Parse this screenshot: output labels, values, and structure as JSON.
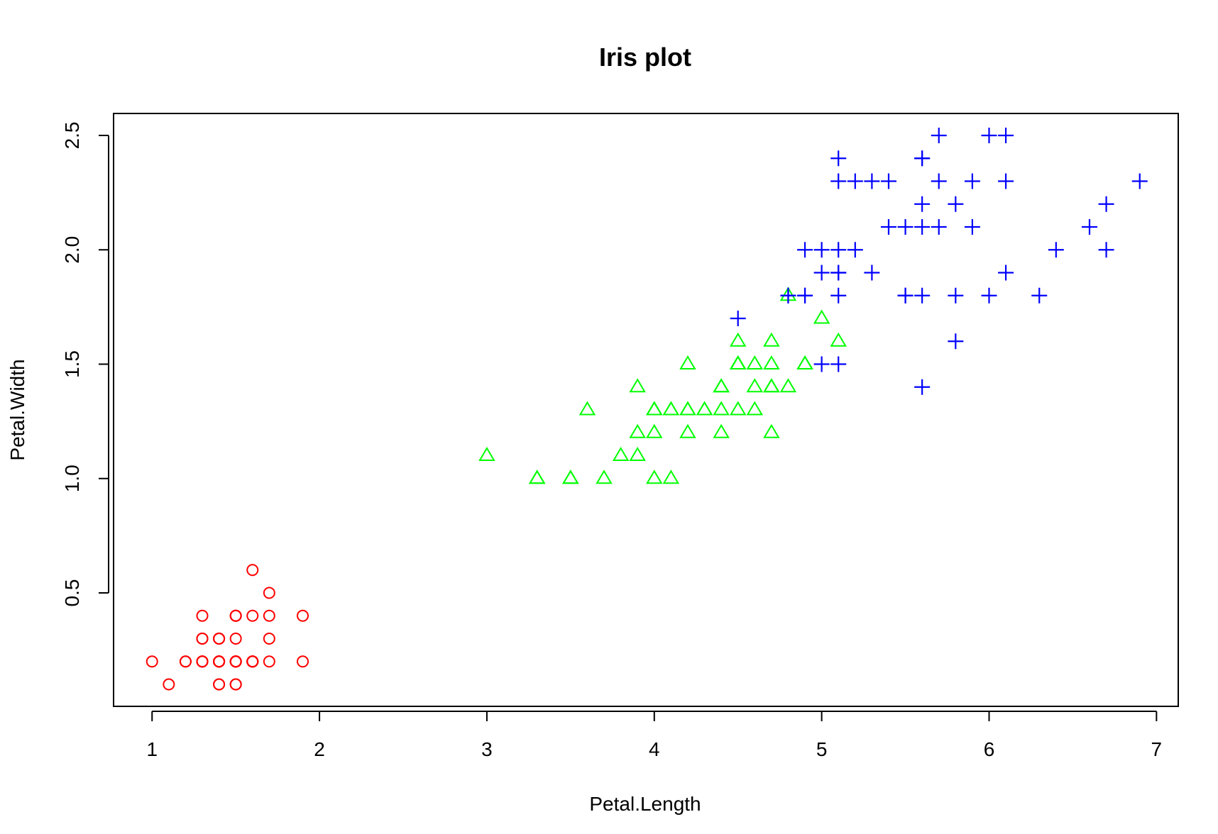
{
  "chart_data": {
    "type": "scatter",
    "title": "Iris plot",
    "xlabel": "Petal.Length",
    "ylabel": "Petal.Width",
    "xlim": [
      0.77,
      7.13
    ],
    "ylim": [
      0.004,
      2.596
    ],
    "x_ticks": [
      1,
      2,
      3,
      4,
      5,
      6,
      7
    ],
    "y_ticks": [
      0.5,
      1.0,
      1.5,
      2.0,
      2.5
    ],
    "x_tick_labels": [
      "1",
      "2",
      "3",
      "4",
      "5",
      "6",
      "7"
    ],
    "y_tick_labels": [
      "0.5",
      "1.0",
      "1.5",
      "2.0",
      "2.5"
    ],
    "grid": false,
    "legend": "none",
    "series": [
      {
        "marker": "circle",
        "color": "#ff0000",
        "points": [
          [
            1.4,
            0.2
          ],
          [
            1.4,
            0.2
          ],
          [
            1.3,
            0.2
          ],
          [
            1.5,
            0.2
          ],
          [
            1.4,
            0.2
          ],
          [
            1.7,
            0.4
          ],
          [
            1.4,
            0.3
          ],
          [
            1.5,
            0.2
          ],
          [
            1.4,
            0.2
          ],
          [
            1.5,
            0.1
          ],
          [
            1.5,
            0.2
          ],
          [
            1.6,
            0.2
          ],
          [
            1.4,
            0.1
          ],
          [
            1.1,
            0.1
          ],
          [
            1.2,
            0.2
          ],
          [
            1.5,
            0.4
          ],
          [
            1.3,
            0.4
          ],
          [
            1.4,
            0.3
          ],
          [
            1.7,
            0.3
          ],
          [
            1.5,
            0.3
          ],
          [
            1.7,
            0.2
          ],
          [
            1.5,
            0.4
          ],
          [
            1.0,
            0.2
          ],
          [
            1.7,
            0.5
          ],
          [
            1.9,
            0.2
          ],
          [
            1.6,
            0.2
          ],
          [
            1.6,
            0.4
          ],
          [
            1.5,
            0.2
          ],
          [
            1.4,
            0.2
          ],
          [
            1.6,
            0.2
          ],
          [
            1.6,
            0.2
          ],
          [
            1.5,
            0.4
          ],
          [
            1.5,
            0.1
          ],
          [
            1.4,
            0.2
          ],
          [
            1.5,
            0.2
          ],
          [
            1.2,
            0.2
          ],
          [
            1.3,
            0.2
          ],
          [
            1.4,
            0.1
          ],
          [
            1.3,
            0.2
          ],
          [
            1.5,
            0.2
          ],
          [
            1.3,
            0.3
          ],
          [
            1.3,
            0.3
          ],
          [
            1.3,
            0.2
          ],
          [
            1.6,
            0.6
          ],
          [
            1.9,
            0.4
          ],
          [
            1.4,
            0.3
          ],
          [
            1.6,
            0.2
          ],
          [
            1.4,
            0.2
          ],
          [
            1.5,
            0.2
          ],
          [
            1.4,
            0.2
          ]
        ]
      },
      {
        "marker": "triangle",
        "color": "#00ff00",
        "points": [
          [
            4.7,
            1.4
          ],
          [
            4.5,
            1.5
          ],
          [
            4.9,
            1.5
          ],
          [
            4.0,
            1.3
          ],
          [
            4.6,
            1.5
          ],
          [
            4.5,
            1.3
          ],
          [
            4.7,
            1.6
          ],
          [
            3.3,
            1.0
          ],
          [
            4.6,
            1.3
          ],
          [
            3.9,
            1.4
          ],
          [
            3.5,
            1.0
          ],
          [
            4.2,
            1.5
          ],
          [
            4.0,
            1.0
          ],
          [
            4.7,
            1.4
          ],
          [
            3.6,
            1.3
          ],
          [
            4.4,
            1.4
          ],
          [
            4.5,
            1.5
          ],
          [
            4.1,
            1.0
          ],
          [
            4.5,
            1.5
          ],
          [
            3.9,
            1.1
          ],
          [
            4.8,
            1.8
          ],
          [
            4.0,
            1.3
          ],
          [
            4.9,
            1.5
          ],
          [
            4.7,
            1.2
          ],
          [
            4.3,
            1.3
          ],
          [
            4.4,
            1.4
          ],
          [
            4.8,
            1.4
          ],
          [
            5.0,
            1.7
          ],
          [
            4.5,
            1.5
          ],
          [
            3.5,
            1.0
          ],
          [
            3.8,
            1.1
          ],
          [
            3.7,
            1.0
          ],
          [
            3.9,
            1.2
          ],
          [
            5.1,
            1.6
          ],
          [
            4.5,
            1.5
          ],
          [
            4.5,
            1.6
          ],
          [
            4.7,
            1.5
          ],
          [
            4.4,
            1.3
          ],
          [
            4.1,
            1.3
          ],
          [
            4.0,
            1.3
          ],
          [
            4.4,
            1.2
          ],
          [
            4.6,
            1.4
          ],
          [
            4.0,
            1.2
          ],
          [
            3.3,
            1.0
          ],
          [
            4.2,
            1.3
          ],
          [
            4.2,
            1.2
          ],
          [
            4.2,
            1.3
          ],
          [
            4.3,
            1.3
          ],
          [
            3.0,
            1.1
          ],
          [
            4.1,
            1.3
          ]
        ]
      },
      {
        "marker": "plus",
        "color": "#0000ff",
        "points": [
          [
            6.0,
            2.5
          ],
          [
            5.1,
            1.9
          ],
          [
            5.9,
            2.1
          ],
          [
            5.6,
            1.8
          ],
          [
            5.8,
            2.2
          ],
          [
            6.6,
            2.1
          ],
          [
            4.5,
            1.7
          ],
          [
            6.3,
            1.8
          ],
          [
            5.8,
            1.8
          ],
          [
            6.1,
            2.5
          ],
          [
            5.1,
            2.0
          ],
          [
            5.3,
            1.9
          ],
          [
            5.5,
            2.1
          ],
          [
            5.0,
            2.0
          ],
          [
            5.1,
            2.4
          ],
          [
            5.3,
            2.3
          ],
          [
            5.5,
            1.8
          ],
          [
            6.7,
            2.2
          ],
          [
            6.9,
            2.3
          ],
          [
            5.0,
            1.5
          ],
          [
            5.7,
            2.3
          ],
          [
            4.9,
            2.0
          ],
          [
            6.7,
            2.0
          ],
          [
            4.9,
            1.8
          ],
          [
            5.7,
            2.1
          ],
          [
            6.0,
            1.8
          ],
          [
            4.8,
            1.8
          ],
          [
            4.9,
            1.8
          ],
          [
            5.6,
            2.1
          ],
          [
            5.8,
            1.6
          ],
          [
            6.1,
            1.9
          ],
          [
            6.4,
            2.0
          ],
          [
            5.6,
            2.2
          ],
          [
            5.1,
            1.5
          ],
          [
            5.6,
            1.4
          ],
          [
            6.1,
            2.3
          ],
          [
            5.6,
            2.4
          ],
          [
            5.5,
            1.8
          ],
          [
            4.8,
            1.8
          ],
          [
            5.4,
            2.1
          ],
          [
            5.6,
            2.4
          ],
          [
            5.1,
            2.3
          ],
          [
            5.1,
            1.9
          ],
          [
            5.9,
            2.3
          ],
          [
            5.7,
            2.5
          ],
          [
            5.2,
            2.3
          ],
          [
            5.0,
            1.9
          ],
          [
            5.2,
            2.0
          ],
          [
            5.4,
            2.3
          ],
          [
            5.1,
            1.8
          ]
        ]
      }
    ]
  }
}
